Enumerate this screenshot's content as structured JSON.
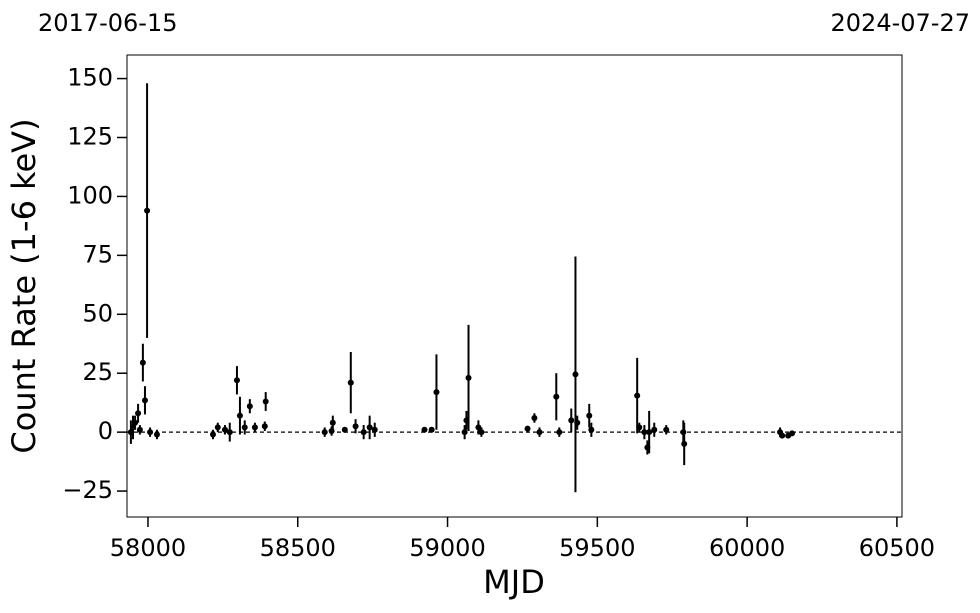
{
  "chart_data": {
    "type": "errorbar",
    "xlabel": "MJD",
    "ylabel": "Count Rate (1-6 keV)",
    "annotations": [
      "2017-06-15",
      "2024-07-27"
    ],
    "color": "#000000",
    "reference_line": 0,
    "xlim": [
      57930,
      60517
    ],
    "ylim": [
      -36,
      160
    ],
    "xticks": [
      58000,
      58500,
      59000,
      59500,
      60000,
      60500
    ],
    "yticks": [
      {
        "value": -25,
        "label": "−25"
      },
      0,
      25,
      50,
      75,
      100,
      125,
      150
    ],
    "x": [
      57943,
      57950,
      57957,
      57967,
      57973,
      57983,
      57990,
      57997,
      58007,
      58030,
      58217,
      58233,
      58257,
      58273,
      58297,
      58307,
      58323,
      58340,
      58357,
      58390,
      58393,
      58590,
      58613,
      58617,
      58657,
      58677,
      58693,
      58720,
      58740,
      58757,
      58923,
      58947,
      58963,
      59057,
      59063,
      59070,
      59103,
      59113,
      59267,
      59290,
      59307,
      59363,
      59373,
      59413,
      59427,
      59433,
      59473,
      59480,
      59633,
      59640,
      59657,
      59667,
      59673,
      59690,
      59730,
      59787,
      59790,
      60110,
      60117,
      60137,
      60150
    ],
    "values": [
      0,
      2,
      4,
      8,
      1,
      29.5,
      13.5,
      94,
      0,
      -1,
      -1,
      2,
      1,
      0,
      22,
      7,
      2,
      11,
      2,
      2.5,
      13,
      0,
      0.5,
      4,
      1,
      21,
      2.5,
      0,
      2,
      1,
      1,
      1,
      17,
      0,
      5,
      23,
      2,
      0,
      1.5,
      6,
      0,
      15,
      0,
      5,
      24.5,
      4,
      7,
      1,
      15.5,
      2,
      0,
      -6.5,
      0,
      1,
      1,
      0,
      -5,
      0,
      -1.5,
      -1.5,
      -0.5
    ],
    "errors": [
      5,
      5,
      3,
      4,
      2,
      8,
      6,
      54,
      2,
      2,
      2,
      2,
      2,
      4,
      6,
      8,
      3,
      3,
      2,
      2,
      4,
      2,
      2,
      3,
      1,
      13,
      3,
      3,
      5,
      3,
      0.5,
      0.5,
      16,
      3,
      4,
      22.5,
      3,
      2,
      1,
      2,
      2,
      10,
      2,
      5,
      50,
      3,
      5,
      3,
      16,
      2,
      3,
      3,
      9,
      3,
      2,
      5,
      9,
      2,
      1,
      1,
      1
    ]
  }
}
